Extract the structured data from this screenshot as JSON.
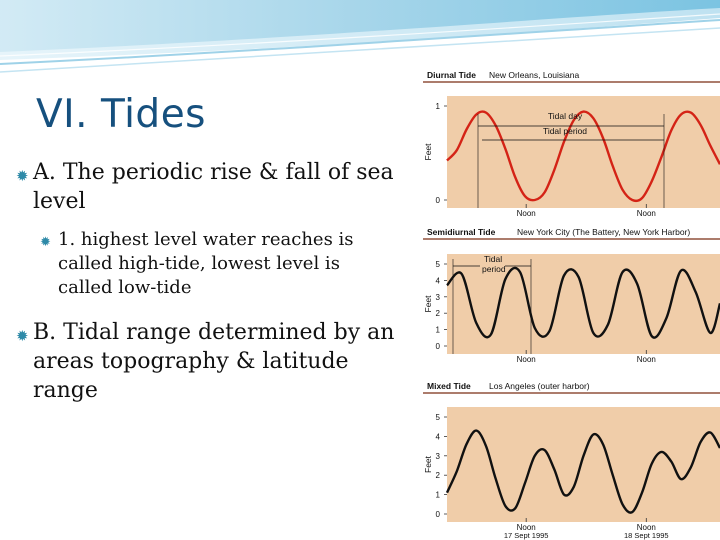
{
  "slide": {
    "title": "VI. Tides",
    "bullets": {
      "a": "A. The periodic rise & fall of sea level",
      "a1": "1. highest level water reaches is called high-tide, lowest level is called low-tide",
      "b": "B. Tidal range determined by an areas topography & latitude range"
    }
  },
  "colors": {
    "title": "#16507e",
    "bullet_mark": "#2e8aa8",
    "panel_bg": "#f0cda9",
    "diurnal_curve": "#d42316",
    "tide_curve": "#111111",
    "header_rule": "#7a2d14"
  },
  "chart_data": [
    {
      "type": "line",
      "title": "Diurnal Tide",
      "subtitle": "New Orleans, Louisiana",
      "ylabel": "Feet",
      "yticks": [
        "0",
        "1"
      ],
      "ylim": [
        0,
        1
      ],
      "xticks": [
        "Noon",
        "Noon"
      ],
      "annotations": [
        "Tidal day",
        "Tidal period"
      ],
      "series": [
        {
          "color": "#d42316",
          "x": [
            0,
            2,
            4,
            6,
            8,
            10,
            12,
            14,
            16,
            18,
            20,
            22,
            24,
            26,
            28,
            30,
            32,
            34,
            36,
            38,
            40,
            42,
            44,
            46,
            48,
            50,
            52,
            54,
            56
          ],
          "values": [
            0.42,
            0.53,
            0.75,
            0.91,
            0.93,
            0.79,
            0.54,
            0.24,
            0.04,
            0.0,
            0.08,
            0.32,
            0.62,
            0.85,
            0.94,
            0.87,
            0.66,
            0.36,
            0.11,
            0.0,
            0.02,
            0.2,
            0.46,
            0.74,
            0.91,
            0.93,
            0.8,
            0.58,
            0.38
          ]
        }
      ]
    },
    {
      "type": "line",
      "title": "Semidiurnal Tide",
      "subtitle": "New York City (The Battery, New York Harbor)",
      "ylabel": "Feet",
      "yticks": [
        "0",
        "1",
        "2",
        "3",
        "4",
        "5"
      ],
      "ylim": [
        0,
        5
      ],
      "xticks": [
        "Noon",
        "Noon"
      ],
      "annotations": [
        "Tidal period"
      ],
      "series": [
        {
          "color": "#111111",
          "x": [
            0,
            3,
            6,
            9,
            12,
            15,
            18,
            21,
            24,
            27,
            30,
            33,
            36,
            39,
            42,
            45,
            48,
            51,
            54,
            56
          ],
          "values": [
            3.7,
            4.4,
            1.4,
            0.7,
            4.1,
            4.5,
            1.1,
            0.9,
            4.3,
            4.2,
            0.8,
            1.3,
            4.5,
            3.8,
            0.6,
            1.7,
            4.6,
            3.3,
            0.8,
            2.6
          ]
        }
      ]
    },
    {
      "type": "line",
      "title": "Mixed Tide",
      "subtitle": "Los Angeles (outer harbor)",
      "ylabel": "Feet",
      "yticks": [
        "0",
        "1",
        "2",
        "3",
        "4",
        "5"
      ],
      "ylim": [
        0,
        5
      ],
      "xticks": [
        "Noon",
        "Noon"
      ],
      "xsublabels": [
        "17 Sept 1995",
        "18 Sept 1995"
      ],
      "series": [
        {
          "color": "#111111",
          "x": [
            0,
            2,
            4,
            6,
            8,
            10,
            12,
            14,
            16,
            18,
            20,
            22,
            24,
            26,
            28,
            30,
            32,
            34,
            36,
            38,
            40,
            42,
            44,
            46,
            48,
            50,
            52,
            54,
            56
          ],
          "values": [
            1.1,
            2.2,
            3.6,
            4.3,
            3.5,
            1.8,
            0.4,
            0.3,
            1.6,
            3.0,
            3.3,
            2.3,
            1.0,
            1.4,
            3.0,
            4.1,
            3.6,
            2.0,
            0.5,
            0.1,
            1.1,
            2.6,
            3.2,
            2.7,
            1.8,
            2.4,
            3.7,
            4.2,
            3.4
          ]
        }
      ]
    }
  ]
}
